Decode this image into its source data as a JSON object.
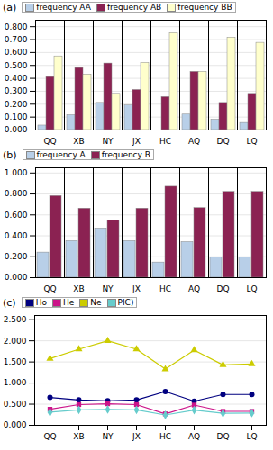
{
  "chart_data": [
    {
      "type": "bar",
      "title": "(a)",
      "categories": [
        "QQ",
        "XB",
        "NY",
        "JX",
        "HC",
        "AQ",
        "DQ",
        "LQ"
      ],
      "series": [
        {
          "name": "frequency AA",
          "color": "#b8cfe8",
          "values": [
            0.035,
            0.115,
            0.21,
            0.19,
            0.0,
            0.12,
            0.08,
            0.055
          ]
        },
        {
          "name": "frequency AB",
          "color": "#8b2252",
          "values": [
            0.41,
            0.48,
            0.515,
            0.31,
            0.255,
            0.45,
            0.21,
            0.28
          ]
        },
        {
          "name": "frequency BB",
          "color": "#ffffcc",
          "values": [
            0.57,
            0.43,
            0.28,
            0.52,
            0.75,
            0.45,
            0.715,
            0.675
          ]
        }
      ],
      "ylim": [
        0.0,
        0.85
      ],
      "yticks": [
        {
          "value": 0.0,
          "label": "0.000"
        },
        {
          "value": 0.1,
          "label": "0.100"
        },
        {
          "value": 0.2,
          "label": "0.200"
        },
        {
          "value": 0.3,
          "label": "0.300"
        },
        {
          "value": 0.4,
          "label": "0.400"
        },
        {
          "value": 0.5,
          "label": "0.500"
        },
        {
          "value": 0.6,
          "label": "0.600"
        },
        {
          "value": 0.7,
          "label": "0.700"
        },
        {
          "value": 0.8,
          "label": "0.800"
        }
      ],
      "grid": true,
      "legend": "top"
    },
    {
      "type": "bar",
      "title": "(b)",
      "categories": [
        "QQ",
        "XB",
        "NY",
        "JX",
        "HC",
        "AQ",
        "DQ",
        "LQ"
      ],
      "series": [
        {
          "name": "frequency A",
          "color": "#b8cfe8",
          "values": [
            0.24,
            0.35,
            0.47,
            0.35,
            0.145,
            0.34,
            0.195,
            0.195
          ]
        },
        {
          "name": "frequency B",
          "color": "#8b2252",
          "values": [
            0.78,
            0.66,
            0.545,
            0.66,
            0.87,
            0.665,
            0.82,
            0.82
          ]
        }
      ],
      "ylim": [
        0.0,
        1.05
      ],
      "yticks": [
        {
          "value": 0.0,
          "label": "0.000"
        },
        {
          "value": 0.2,
          "label": "0.200"
        },
        {
          "value": 0.4,
          "label": "0.400"
        },
        {
          "value": 0.6,
          "label": "0.600"
        },
        {
          "value": 0.8,
          "label": "0.800"
        },
        {
          "value": 1.0,
          "label": "1.000"
        }
      ],
      "grid": true,
      "legend": "top"
    },
    {
      "type": "line",
      "title": "(c)",
      "categories": [
        "QQ",
        "XB",
        "NY",
        "JX",
        "HC",
        "AQ",
        "DQ",
        "LQ"
      ],
      "series": [
        {
          "name": "Ho",
          "color": "#000080",
          "marker": "circle",
          "values": [
            0.66,
            0.6,
            0.58,
            0.6,
            0.8,
            0.57,
            0.73,
            0.73
          ]
        },
        {
          "name": "He",
          "color": "#cc1489",
          "marker": "square",
          "values": [
            0.38,
            0.49,
            0.51,
            0.49,
            0.27,
            0.48,
            0.33,
            0.33
          ]
        },
        {
          "name": "Ne",
          "color": "#cccc00",
          "marker": "triangle",
          "values": [
            1.58,
            1.8,
            2.0,
            1.8,
            1.33,
            1.78,
            1.43,
            1.45
          ]
        },
        {
          "name": "PIC)",
          "color": "#66cccc",
          "marker": "diamond",
          "values": [
            0.31,
            0.365,
            0.375,
            0.365,
            0.245,
            0.36,
            0.285,
            0.29
          ]
        }
      ],
      "ylim": [
        0.0,
        2.6
      ],
      "yticks": [
        {
          "value": 0.0,
          "label": "0.000"
        },
        {
          "value": 0.5,
          "label": "0.500"
        },
        {
          "value": 1.0,
          "label": "1.000"
        },
        {
          "value": 1.5,
          "label": "1.500"
        },
        {
          "value": 2.0,
          "label": "2.000"
        },
        {
          "value": 2.5,
          "label": "2.500"
        }
      ],
      "grid": true,
      "legend": "top"
    }
  ]
}
